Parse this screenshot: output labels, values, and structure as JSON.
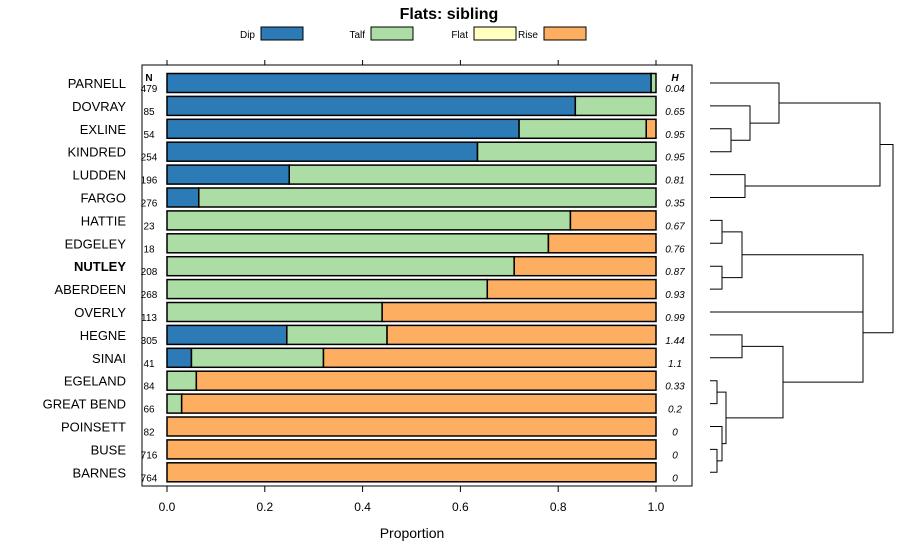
{
  "chart_data": {
    "type": "bar",
    "orientation": "horizontal",
    "stacked": true,
    "title": "Flats: sibling",
    "xlabel": "Proportion",
    "xlim": [
      0,
      1
    ],
    "xticks": [
      "0.0",
      "0.2",
      "0.4",
      "0.6",
      "0.8",
      "1.0"
    ],
    "xtick_values": [
      0,
      0.2,
      0.4,
      0.6,
      0.8,
      1.0
    ],
    "n_header": "N",
    "h_header": "H",
    "highlight": "NUTLEY",
    "legend": [
      {
        "name": "Dip",
        "color": "#2c7bb6"
      },
      {
        "name": "Talf",
        "color": "#abdda4"
      },
      {
        "name": "Flat",
        "color": "#ffffbf"
      },
      {
        "name": "Rise",
        "color": "#fdae61"
      }
    ],
    "rows": [
      {
        "label": "PARNELL",
        "n": "479",
        "h": "0.04",
        "values": [
          0.99,
          0.01,
          0,
          0
        ]
      },
      {
        "label": "DOVRAY",
        "n": "85",
        "h": "0.65",
        "values": [
          0.835,
          0.165,
          0,
          0
        ]
      },
      {
        "label": "EXLINE",
        "n": "54",
        "h": "0.95",
        "values": [
          0.72,
          0.26,
          0,
          0.02
        ]
      },
      {
        "label": "KINDRED",
        "n": "254",
        "h": "0.95",
        "values": [
          0.635,
          0.365,
          0,
          0
        ]
      },
      {
        "label": "LUDDEN",
        "n": "196",
        "h": "0.81",
        "values": [
          0.25,
          0.75,
          0,
          0
        ]
      },
      {
        "label": "FARGO",
        "n": "276",
        "h": "0.35",
        "values": [
          0.065,
          0.935,
          0,
          0
        ]
      },
      {
        "label": "HATTIE",
        "n": "23",
        "h": "0.67",
        "values": [
          0,
          0.825,
          0,
          0.175
        ]
      },
      {
        "label": "EDGELEY",
        "n": "18",
        "h": "0.76",
        "values": [
          0,
          0.78,
          0,
          0.22
        ]
      },
      {
        "label": "NUTLEY",
        "n": "208",
        "h": "0.87",
        "values": [
          0,
          0.71,
          0,
          0.29
        ]
      },
      {
        "label": "ABERDEEN",
        "n": "268",
        "h": "0.93",
        "values": [
          0,
          0.655,
          0,
          0.345
        ]
      },
      {
        "label": "OVERLY",
        "n": "113",
        "h": "0.99",
        "values": [
          0,
          0.44,
          0,
          0.56
        ]
      },
      {
        "label": "HEGNE",
        "n": "305",
        "h": "1.44",
        "values": [
          0.245,
          0.205,
          0,
          0.55
        ]
      },
      {
        "label": "SINAI",
        "n": "41",
        "h": "1.1",
        "values": [
          0.05,
          0.27,
          0,
          0.68
        ]
      },
      {
        "label": "EGELAND",
        "n": "84",
        "h": "0.33",
        "values": [
          0,
          0.06,
          0,
          0.94
        ]
      },
      {
        "label": "GREAT BEND",
        "n": "66",
        "h": "0.2",
        "values": [
          0,
          0.03,
          0,
          0.97
        ]
      },
      {
        "label": "POINSETT",
        "n": "82",
        "h": "0",
        "values": [
          0,
          0,
          0,
          1
        ]
      },
      {
        "label": "BUSE",
        "n": "716",
        "h": "0",
        "values": [
          0,
          0,
          0,
          1
        ]
      },
      {
        "label": "BARNES",
        "n": "764",
        "h": "0",
        "values": [
          0,
          0,
          0,
          1
        ]
      }
    ]
  }
}
